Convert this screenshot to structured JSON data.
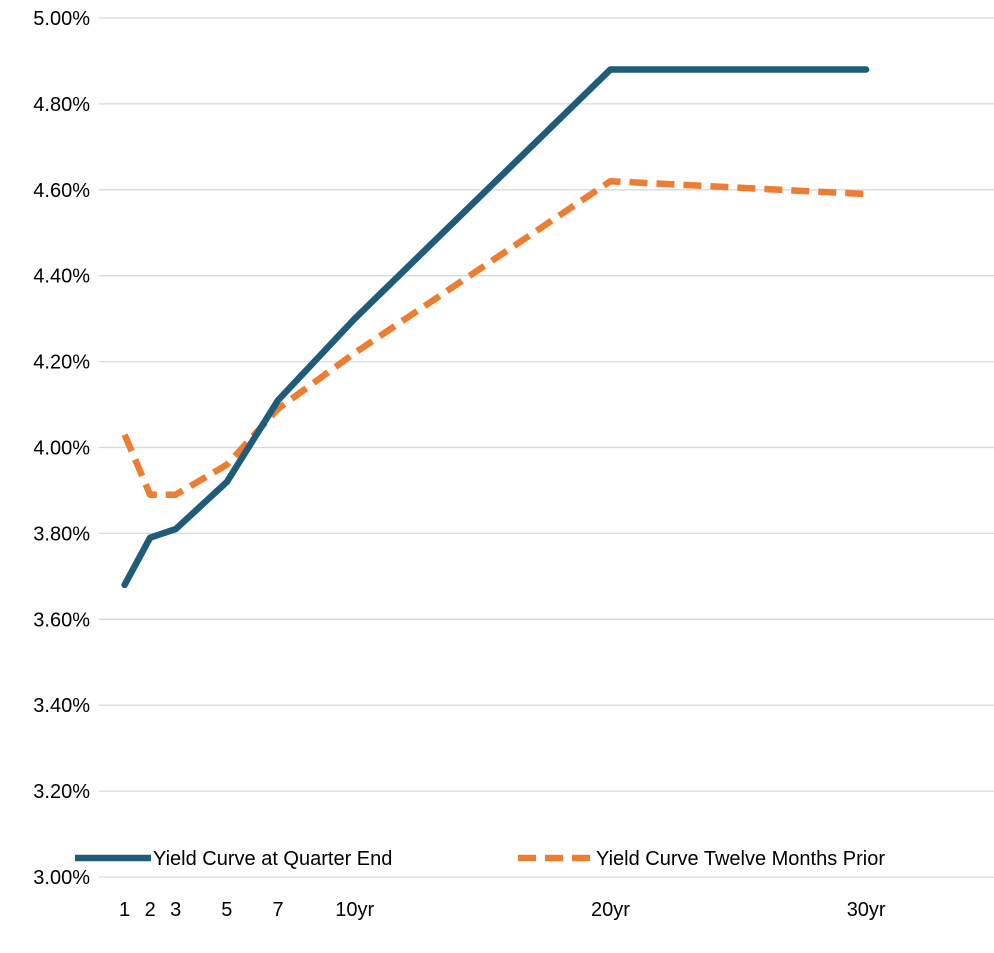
{
  "chart_data": {
    "type": "line",
    "x": [
      1,
      2,
      3,
      5,
      7,
      10,
      20,
      30
    ],
    "x_tick_labels": [
      "1",
      "2",
      "3",
      "5",
      "7",
      "10yr",
      "20yr",
      "30yr"
    ],
    "xlim": [
      0,
      35
    ],
    "ylim": [
      3.0,
      5.0
    ],
    "y_tick_values": [
      3.0,
      3.2,
      3.4,
      3.6,
      3.8,
      4.0,
      4.2,
      4.4,
      4.6,
      4.8,
      5.0
    ],
    "y_tick_labels": [
      "3.00%",
      "3.20%",
      "3.40%",
      "3.60%",
      "3.80%",
      "4.00%",
      "4.20%",
      "4.40%",
      "4.60%",
      "4.80%",
      "5.00%"
    ],
    "grid": true,
    "legend_position": "bottom",
    "series": [
      {
        "name": "Yield Curve at Quarter End",
        "values": [
          3.68,
          3.79,
          3.81,
          3.92,
          4.11,
          4.3,
          4.88,
          4.88
        ],
        "color": "#1F5C7A",
        "style": "solid"
      },
      {
        "name": "Yield Curve Twelve Months Prior",
        "values": [
          4.03,
          3.89,
          3.89,
          3.96,
          4.09,
          4.22,
          4.62,
          4.59
        ],
        "color": "#ED7D31",
        "style": "dashed"
      }
    ]
  }
}
